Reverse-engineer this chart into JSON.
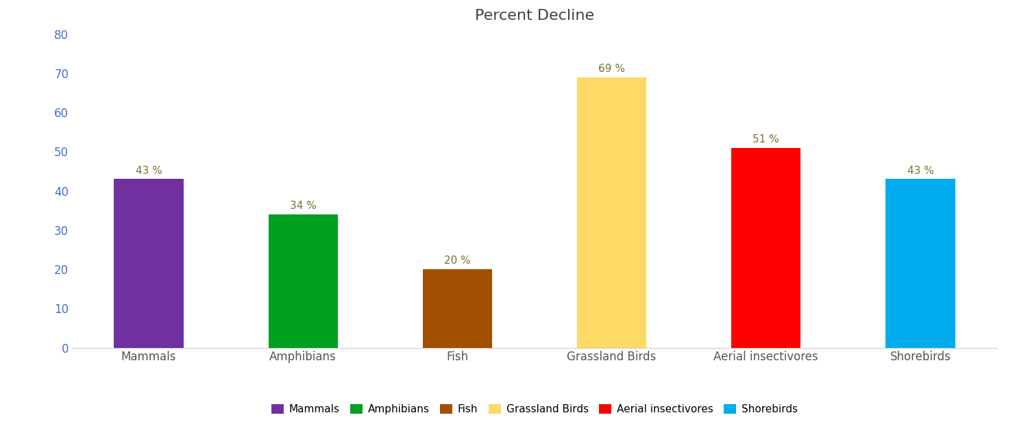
{
  "title": "Percent Decline",
  "categories": [
    "Mammals",
    "Amphibians",
    "Fish",
    "Grassland Birds",
    "Aerial insectivores",
    "Shorebirds"
  ],
  "values": [
    43,
    34,
    20,
    69,
    51,
    43
  ],
  "bar_colors": [
    "#7030A0",
    "#00A020",
    "#A05000",
    "#FFD966",
    "#FF0000",
    "#00ADEF"
  ],
  "labels": [
    "43 %",
    "34 %",
    "20 %",
    "69 %",
    "51 %",
    "43 %"
  ],
  "ylim": [
    0,
    80
  ],
  "yticks": [
    0,
    10,
    20,
    30,
    40,
    50,
    60,
    70,
    80
  ],
  "legend_labels": [
    "Mammals",
    "Amphibians",
    "Fish",
    "Grassland Birds",
    "Aerial insectivores",
    "Shorebirds"
  ],
  "legend_colors": [
    "#7030A0",
    "#00A020",
    "#A05000",
    "#FFD966",
    "#FF0000",
    "#00ADEF"
  ],
  "title_fontsize": 16,
  "tick_fontsize": 12,
  "label_fontsize": 11,
  "legend_fontsize": 11,
  "bar_label_color": "#7B7030",
  "axis_tick_color": "#4472C4",
  "background_color": "#FFFFFF",
  "bar_width": 0.45
}
